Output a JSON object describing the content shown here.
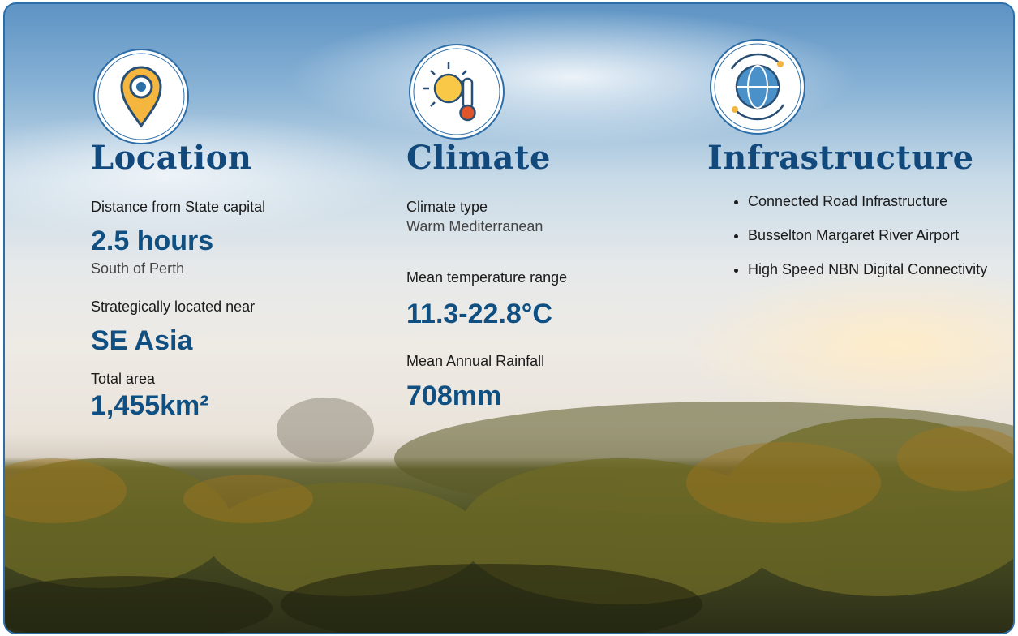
{
  "columns": [
    {
      "title": "Location",
      "items": [
        {
          "label": "Distance from State capital",
          "value": "2.5 hours",
          "note": "South of Perth"
        },
        {
          "label": "Strategically located near",
          "value": "SE Asia"
        },
        {
          "label": "Total area",
          "value": "1,455km²"
        }
      ]
    },
    {
      "title": "Climate",
      "items": [
        {
          "label": "Climate type",
          "note": "Warm Mediterranean"
        },
        {
          "label": "Mean temperature range",
          "value": "11.3-22.8°C"
        },
        {
          "label": "Mean Annual Rainfall",
          "value": "708mm"
        }
      ]
    },
    {
      "title": "Infrastructure",
      "bullets": [
        "Connected Road Infrastructure",
        "Busselton Margaret River Airport",
        "High Speed NBN Digital Connectivity"
      ]
    }
  ]
}
